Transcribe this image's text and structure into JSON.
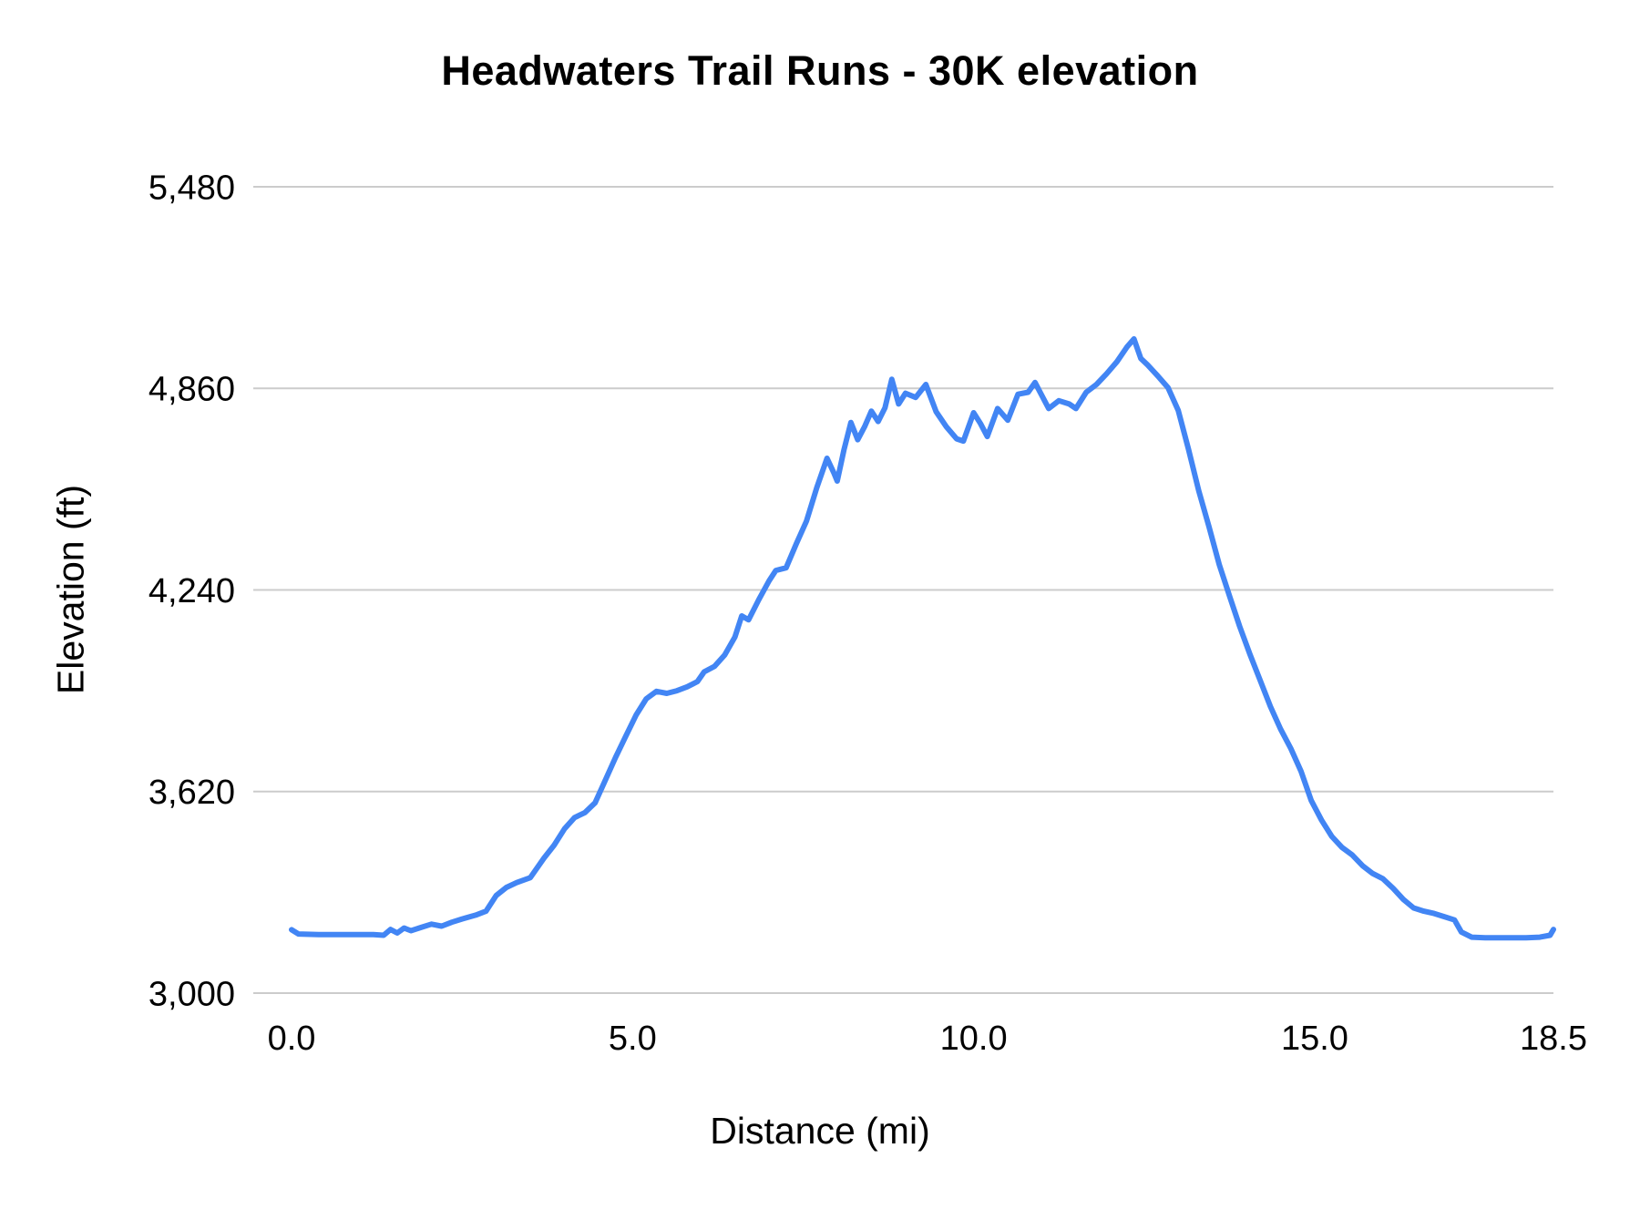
{
  "chart_data": {
    "type": "line",
    "title": "Headwaters Trail Runs - 30K elevation",
    "xlabel": "Distance (mi)",
    "ylabel": "Elevation (ft)",
    "xlim": [
      0,
      18.5
    ],
    "ylim": [
      3000,
      5480
    ],
    "grid": "horizontal",
    "legend": "none",
    "line_color": "#4285f4",
    "gridline_color": "#cccccc",
    "xticks": [
      0,
      5,
      10,
      15,
      18.5
    ],
    "xtick_labels": [
      "0.0",
      "5.0",
      "10.0",
      "15.0",
      "18.5"
    ],
    "yticks": [
      3000,
      3620,
      4240,
      4860,
      5480
    ],
    "ytick_labels": [
      "3,000",
      "3,620",
      "4,240",
      "4,860",
      "5,480"
    ],
    "series_name": "Elevation",
    "points": [
      [
        0.0,
        3195
      ],
      [
        0.1,
        3182
      ],
      [
        0.4,
        3180
      ],
      [
        0.8,
        3180
      ],
      [
        1.2,
        3180
      ],
      [
        1.35,
        3178
      ],
      [
        1.45,
        3196
      ],
      [
        1.55,
        3185
      ],
      [
        1.65,
        3200
      ],
      [
        1.75,
        3192
      ],
      [
        1.9,
        3202
      ],
      [
        2.05,
        3212
      ],
      [
        2.2,
        3206
      ],
      [
        2.35,
        3218
      ],
      [
        2.5,
        3228
      ],
      [
        2.7,
        3240
      ],
      [
        2.85,
        3252
      ],
      [
        3.0,
        3300
      ],
      [
        3.15,
        3325
      ],
      [
        3.3,
        3340
      ],
      [
        3.5,
        3355
      ],
      [
        3.7,
        3415
      ],
      [
        3.85,
        3455
      ],
      [
        4.0,
        3505
      ],
      [
        4.15,
        3540
      ],
      [
        4.3,
        3555
      ],
      [
        4.45,
        3585
      ],
      [
        4.6,
        3655
      ],
      [
        4.75,
        3725
      ],
      [
        4.9,
        3790
      ],
      [
        5.05,
        3855
      ],
      [
        5.2,
        3905
      ],
      [
        5.35,
        3928
      ],
      [
        5.5,
        3922
      ],
      [
        5.65,
        3930
      ],
      [
        5.8,
        3942
      ],
      [
        5.95,
        3958
      ],
      [
        6.05,
        3988
      ],
      [
        6.2,
        4005
      ],
      [
        6.35,
        4040
      ],
      [
        6.5,
        4095
      ],
      [
        6.6,
        4160
      ],
      [
        6.7,
        4148
      ],
      [
        6.85,
        4210
      ],
      [
        7.0,
        4268
      ],
      [
        7.1,
        4300
      ],
      [
        7.25,
        4308
      ],
      [
        7.4,
        4382
      ],
      [
        7.55,
        4452
      ],
      [
        7.7,
        4555
      ],
      [
        7.85,
        4645
      ],
      [
        7.95,
        4600
      ],
      [
        8.0,
        4575
      ],
      [
        8.1,
        4672
      ],
      [
        8.2,
        4755
      ],
      [
        8.3,
        4702
      ],
      [
        8.4,
        4742
      ],
      [
        8.5,
        4790
      ],
      [
        8.6,
        4758
      ],
      [
        8.7,
        4800
      ],
      [
        8.8,
        4888
      ],
      [
        8.9,
        4812
      ],
      [
        9.0,
        4845
      ],
      [
        9.15,
        4832
      ],
      [
        9.3,
        4872
      ],
      [
        9.45,
        4788
      ],
      [
        9.6,
        4742
      ],
      [
        9.75,
        4705
      ],
      [
        9.85,
        4698
      ],
      [
        10.0,
        4785
      ],
      [
        10.1,
        4752
      ],
      [
        10.2,
        4712
      ],
      [
        10.35,
        4798
      ],
      [
        10.5,
        4762
      ],
      [
        10.65,
        4842
      ],
      [
        10.8,
        4848
      ],
      [
        10.9,
        4878
      ],
      [
        11.0,
        4838
      ],
      [
        11.1,
        4798
      ],
      [
        11.25,
        4822
      ],
      [
        11.4,
        4812
      ],
      [
        11.5,
        4798
      ],
      [
        11.65,
        4848
      ],
      [
        11.8,
        4872
      ],
      [
        11.95,
        4905
      ],
      [
        12.1,
        4942
      ],
      [
        12.25,
        4988
      ],
      [
        12.35,
        5012
      ],
      [
        12.45,
        4952
      ],
      [
        12.55,
        4932
      ],
      [
        12.7,
        4898
      ],
      [
        12.85,
        4862
      ],
      [
        13.0,
        4792
      ],
      [
        13.15,
        4672
      ],
      [
        13.3,
        4545
      ],
      [
        13.45,
        4435
      ],
      [
        13.6,
        4318
      ],
      [
        13.75,
        4222
      ],
      [
        13.9,
        4128
      ],
      [
        14.05,
        4042
      ],
      [
        14.2,
        3962
      ],
      [
        14.35,
        3882
      ],
      [
        14.5,
        3812
      ],
      [
        14.65,
        3752
      ],
      [
        14.8,
        3682
      ],
      [
        14.95,
        3592
      ],
      [
        15.1,
        3532
      ],
      [
        15.25,
        3482
      ],
      [
        15.4,
        3448
      ],
      [
        15.55,
        3425
      ],
      [
        15.7,
        3392
      ],
      [
        15.85,
        3368
      ],
      [
        16.0,
        3352
      ],
      [
        16.15,
        3322
      ],
      [
        16.3,
        3288
      ],
      [
        16.45,
        3262
      ],
      [
        16.6,
        3252
      ],
      [
        16.75,
        3245
      ],
      [
        16.9,
        3235
      ],
      [
        17.05,
        3225
      ],
      [
        17.15,
        3188
      ],
      [
        17.3,
        3172
      ],
      [
        17.5,
        3170
      ],
      [
        17.8,
        3170
      ],
      [
        18.1,
        3170
      ],
      [
        18.3,
        3172
      ],
      [
        18.45,
        3178
      ],
      [
        18.5,
        3196
      ]
    ]
  }
}
